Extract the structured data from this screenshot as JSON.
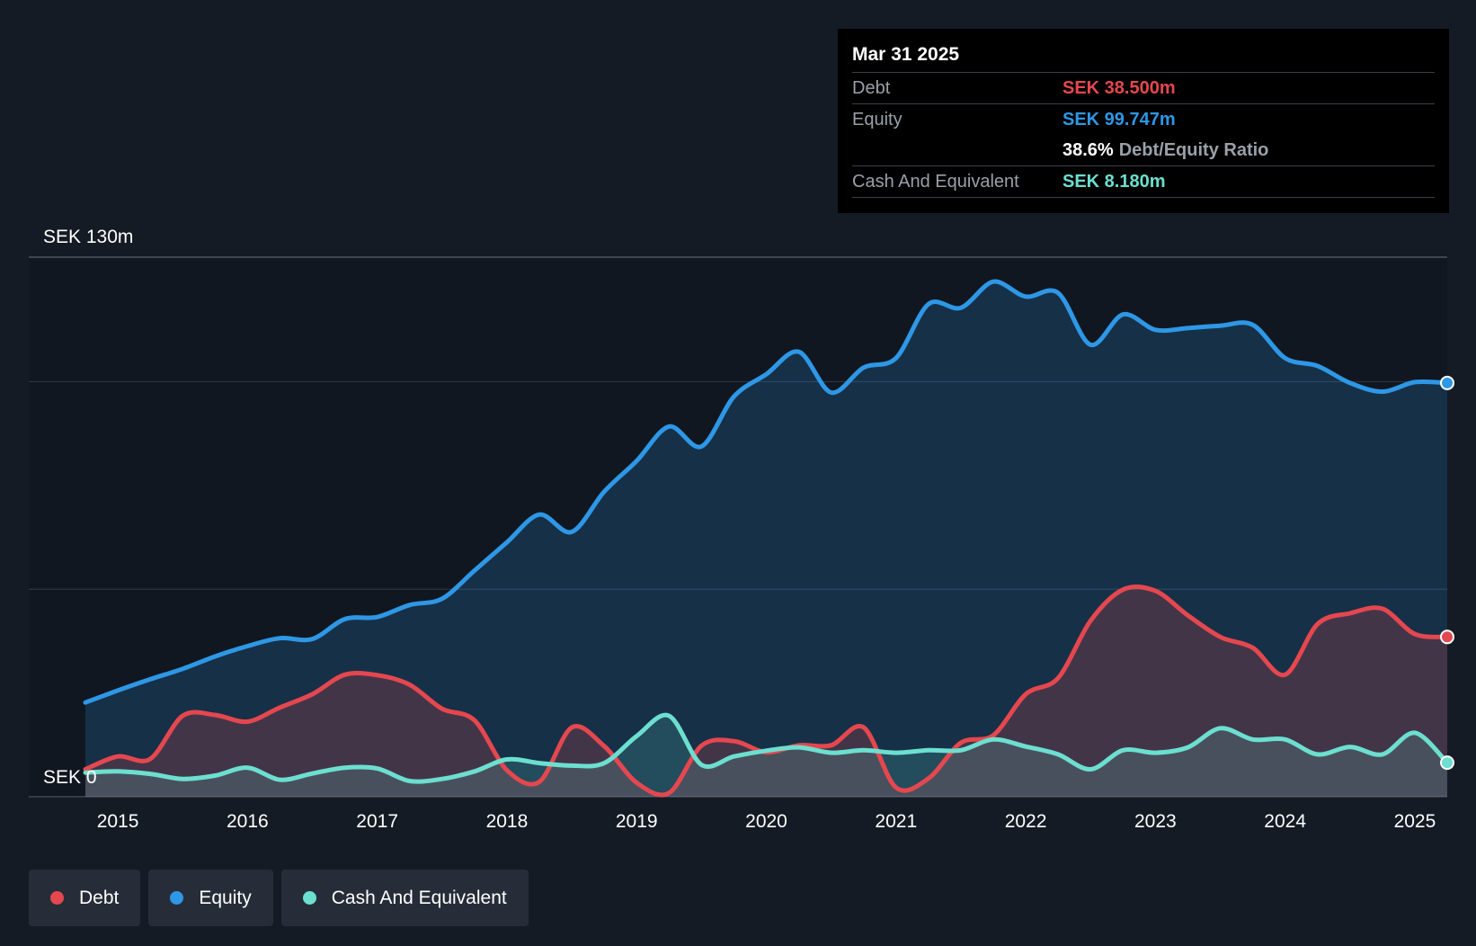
{
  "tooltip": {
    "date": "Mar 31 2025",
    "debt_label": "Debt",
    "debt_value": "SEK 38.500m",
    "equity_label": "Equity",
    "equity_value": "SEK 99.747m",
    "ratio_value": "38.6%",
    "ratio_label": "Debt/Equity Ratio",
    "cash_label": "Cash And Equivalent",
    "cash_value": "SEK 8.180m"
  },
  "legend": {
    "debt": "Debt",
    "equity": "Equity",
    "cash": "Cash And Equivalent"
  },
  "colors": {
    "background": "#151b24",
    "debt": "#e5474f",
    "equity": "#2e97e6",
    "cash": "#6cdfd0"
  },
  "chart_data": {
    "type": "area",
    "title": "",
    "xlabel": "",
    "ylabel": "",
    "y_top_label": "SEK 130m",
    "y_bottom_label": "SEK 0",
    "ylim": [
      0,
      130
    ],
    "xlim": [
      2014.75,
      2025.25
    ],
    "x_ticks": [
      "2015",
      "2016",
      "2017",
      "2018",
      "2019",
      "2020",
      "2021",
      "2022",
      "2023",
      "2024",
      "2025"
    ],
    "series": [
      {
        "name": "Equity",
        "color": "#2e97e6",
        "x": [
          2014.75,
          2015.0,
          2015.25,
          2015.5,
          2015.75,
          2016.0,
          2016.25,
          2016.5,
          2016.75,
          2017.0,
          2017.25,
          2017.5,
          2017.75,
          2018.0,
          2018.25,
          2018.5,
          2018.75,
          2019.0,
          2019.25,
          2019.5,
          2019.75,
          2020.0,
          2020.25,
          2020.5,
          2020.75,
          2021.0,
          2021.25,
          2021.5,
          2021.75,
          2022.0,
          2022.25,
          2022.5,
          2022.75,
          2023.0,
          2023.25,
          2023.5,
          2023.75,
          2024.0,
          2024.25,
          2024.5,
          2024.75,
          2025.0,
          2025.25
        ],
        "values": [
          22.7,
          25.6,
          28.3,
          30.8,
          33.8,
          36.3,
          38.2,
          38.0,
          42.8,
          43.3,
          46.2,
          47.7,
          54.5,
          61.3,
          68.0,
          63.8,
          73.5,
          80.9,
          89.2,
          84.4,
          96.4,
          101.8,
          107.2,
          97.4,
          103.4,
          105.7,
          118.7,
          117.8,
          124.1,
          120.5,
          121.4,
          108.9,
          116.2,
          112.5,
          112.9,
          113.5,
          113.7,
          105.7,
          103.8,
          99.7,
          97.6,
          99.9,
          99.7
        ]
      },
      {
        "name": "Debt",
        "color": "#e5474f",
        "x": [
          2014.75,
          2015.0,
          2015.25,
          2015.5,
          2015.75,
          2016.0,
          2016.25,
          2016.5,
          2016.75,
          2017.0,
          2017.25,
          2017.5,
          2017.75,
          2018.0,
          2018.25,
          2018.5,
          2018.75,
          2019.0,
          2019.25,
          2019.5,
          2019.75,
          2020.0,
          2020.25,
          2020.5,
          2020.75,
          2021.0,
          2021.25,
          2021.5,
          2021.75,
          2022.0,
          2022.25,
          2022.5,
          2022.75,
          2023.0,
          2023.25,
          2023.5,
          2023.75,
          2024.0,
          2024.25,
          2024.5,
          2024.75,
          2025.0,
          2025.25
        ],
        "values": [
          6.6,
          9.7,
          9.1,
          19.5,
          19.7,
          18.1,
          21.5,
          24.7,
          29.4,
          29.3,
          27.0,
          21.2,
          18.4,
          6.4,
          3.6,
          16.7,
          12.2,
          3.4,
          0.9,
          12.3,
          13.4,
          10.7,
          12.4,
          12.4,
          16.7,
          2.2,
          4.4,
          13.0,
          14.8,
          24.7,
          28.6,
          42.4,
          49.9,
          49.6,
          43.7,
          38.5,
          35.9,
          29.4,
          41.6,
          44.2,
          45.3,
          39.2,
          38.5
        ]
      },
      {
        "name": "Cash And Equivalent",
        "color": "#6cdfd0",
        "x": [
          2014.75,
          2015.0,
          2015.25,
          2015.5,
          2015.75,
          2016.0,
          2016.25,
          2016.5,
          2016.75,
          2017.0,
          2017.25,
          2017.5,
          2017.75,
          2018.0,
          2018.25,
          2018.5,
          2018.75,
          2019.0,
          2019.25,
          2019.5,
          2019.75,
          2020.0,
          2020.25,
          2020.5,
          2020.75,
          2021.0,
          2021.25,
          2021.5,
          2021.75,
          2022.0,
          2022.25,
          2022.5,
          2022.75,
          2023.0,
          2023.25,
          2023.5,
          2023.75,
          2024.0,
          2024.25,
          2024.5,
          2024.75,
          2025.0,
          2025.25
        ],
        "values": [
          5.8,
          6.1,
          5.5,
          4.3,
          5.1,
          7.0,
          4.1,
          5.6,
          7.0,
          6.8,
          3.8,
          4.3,
          6.1,
          9.0,
          8.1,
          7.5,
          8.1,
          14.6,
          19.5,
          7.7,
          9.7,
          11.1,
          11.9,
          10.6,
          11.2,
          10.6,
          11.2,
          11.2,
          13.8,
          12.1,
          10.2,
          6.6,
          11.2,
          10.6,
          11.9,
          16.5,
          13.8,
          13.8,
          10.2,
          12.0,
          10.2,
          15.4,
          8.2
        ]
      }
    ]
  }
}
